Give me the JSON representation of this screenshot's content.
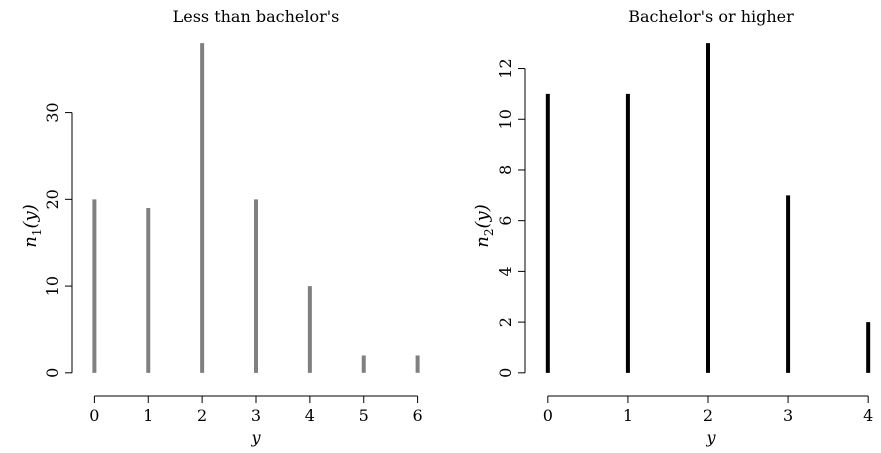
{
  "chart_data": [
    {
      "type": "bar",
      "title": "Less than bachelor's",
      "xlabel": "y",
      "ylabel": {
        "base": "n",
        "subscript": "1",
        "suffix": "(y)"
      },
      "x": [
        0,
        1,
        2,
        3,
        4,
        5,
        6
      ],
      "values": [
        20,
        19,
        38,
        20,
        10,
        2,
        2
      ],
      "xticks": [
        "0",
        "1",
        "2",
        "3",
        "4",
        "5",
        "6"
      ],
      "yticks": [
        "0",
        "10",
        "20",
        "30"
      ],
      "xlim": [
        -0.23,
        6.23
      ],
      "ylim": [
        -1.52,
        39.52
      ],
      "bar_color": "#808080",
      "axes_box": false
    },
    {
      "type": "bar",
      "title": "Bachelor's or higher",
      "xlabel": "y",
      "ylabel": {
        "base": "n",
        "subscript": "2",
        "suffix": "(y)"
      },
      "x": [
        0,
        1,
        2,
        3,
        4
      ],
      "values": [
        11,
        11,
        13,
        7,
        2
      ],
      "xticks": [
        "0",
        "1",
        "2",
        "3",
        "4"
      ],
      "yticks": [
        "0",
        "2",
        "4",
        "6",
        "8",
        "10",
        "12"
      ],
      "xlim": [
        -0.16,
        4.16
      ],
      "ylim": [
        -0.52,
        13.52
      ],
      "bar_color": "#000000",
      "axes_box": false
    }
  ]
}
